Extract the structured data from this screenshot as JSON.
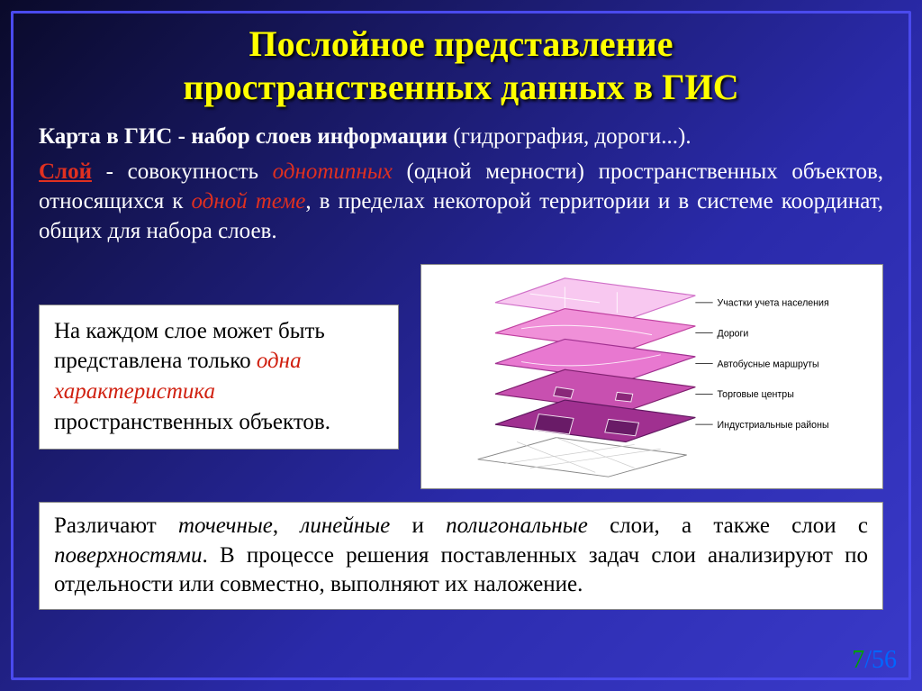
{
  "title_line1": "Послойное представление",
  "title_line2": "пространственных данных в ГИС",
  "intro": {
    "lead": "Карта в ГИС - набор слоев информации",
    "tail": " (гидрография, дороги...)."
  },
  "layer_def": {
    "term": "Слой",
    "t1": " - совокупность ",
    "red1": "однотипных",
    "t2": " (одной мерности) пространственных объектов, относящихся к ",
    "red2": "одной теме",
    "t3": ", в пределах некоторой территории и в системе координат, общих для набора слоев."
  },
  "callout": {
    "t1": "На каждом слое может быть представлена только ",
    "red": "одна характеристика",
    "t2": " пространственных объектов."
  },
  "diagram": {
    "layers": [
      {
        "label": "Участки учета населения",
        "fill": "#f8c8f0",
        "stroke": "#d070c8"
      },
      {
        "label": "Дороги",
        "fill": "#f090d8",
        "stroke": "#c040a0"
      },
      {
        "label": "Автобусные маршруты",
        "fill": "#e878d0",
        "stroke": "#a03090"
      },
      {
        "label": "Торговые центры",
        "fill": "#c850b0",
        "stroke": "#802070"
      },
      {
        "label": "Индустриальные районы",
        "fill": "#a03090",
        "stroke": "#601860"
      }
    ],
    "base_fill": "#ffffff",
    "base_stroke": "#888888"
  },
  "bottom": {
    "t1": "Различают ",
    "it1": "точечные",
    "t2": ", ",
    "it2": "линейные",
    "t3": " и ",
    "it3": "полигональные",
    "t4": " слои, а также слои с ",
    "it4": "поверхностями",
    "t5": ". В процессе решения поставленных задач слои анализируют по отдельности или совместно, выполняют их наложение."
  },
  "pager": {
    "current": "7",
    "sep": "/",
    "total": "56"
  }
}
